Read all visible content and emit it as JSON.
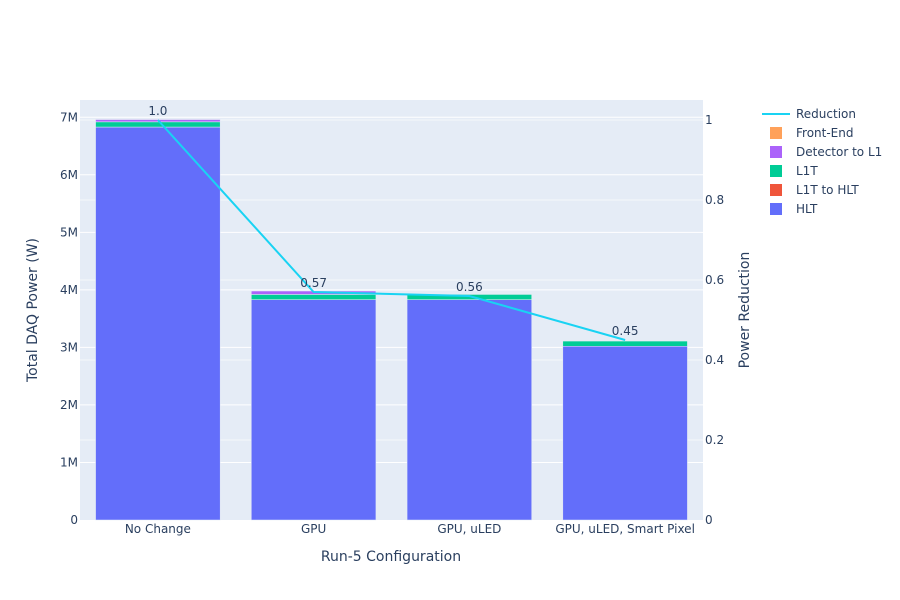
{
  "chart_data": {
    "type": "bar",
    "barmode": "stack",
    "categories": [
      "No Change",
      "GPU",
      "GPU, uLED",
      "GPU, uLED, Smart Pixel"
    ],
    "series": [
      {
        "name": "HLT",
        "values": [
          6830000,
          3830000,
          3830000,
          3020000
        ],
        "color": "#636efa"
      },
      {
        "name": "L1T to HLT",
        "values": [
          0,
          0,
          0,
          0
        ],
        "color": "#ef553b"
      },
      {
        "name": "L1T",
        "values": [
          90000,
          90000,
          90000,
          90000
        ],
        "color": "#00cc96"
      },
      {
        "name": "Detector to L1",
        "values": [
          40000,
          60000,
          0,
          0
        ],
        "color": "#ab63fa"
      },
      {
        "name": "Front-End",
        "values": [
          0,
          0,
          0,
          0
        ],
        "color": "#ffa15a"
      }
    ],
    "line": {
      "name": "Reduction",
      "values": [
        1.0,
        0.57,
        0.56,
        0.45
      ],
      "labels": [
        "1.0",
        "0.57",
        "0.56",
        "0.45"
      ],
      "color": "#19d3f3"
    },
    "legend_order": [
      "Reduction",
      "Front-End",
      "Detector to L1",
      "L1T",
      "L1T to HLT",
      "HLT"
    ],
    "xlabel": "Run-5 Configuration",
    "ylabel": "Total DAQ Power (W)",
    "y2label": "Power Reduction",
    "ylim": [
      0,
      7300000
    ],
    "y2lim": [
      0,
      1.05
    ],
    "yticks": [
      0,
      1000000,
      2000000,
      3000000,
      4000000,
      5000000,
      6000000,
      7000000
    ],
    "ytick_labels": [
      "0",
      "1M",
      "2M",
      "3M",
      "4M",
      "5M",
      "6M",
      "7M"
    ],
    "y2ticks": [
      0,
      0.2,
      0.4,
      0.6,
      0.8,
      1
    ],
    "y2tick_labels": [
      "0",
      "0.2",
      "0.4",
      "0.6",
      "0.8",
      "1"
    ],
    "legend_position": "top-right",
    "plot_bg": "#e5ecf6",
    "grid": true
  }
}
